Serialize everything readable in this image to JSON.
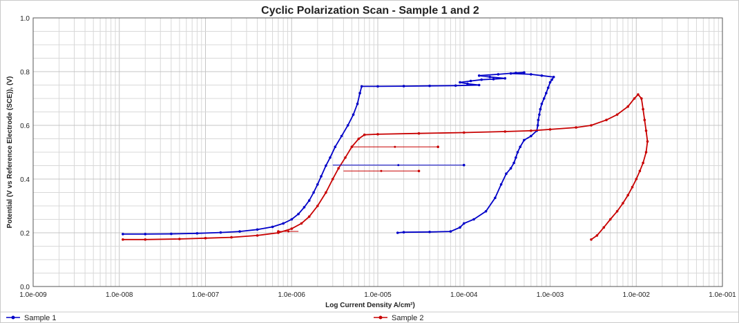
{
  "chart_data": {
    "type": "line",
    "title": "Cyclic Polarization Scan - Sample 1 and 2",
    "xlabel": "Log Current Density A/cm²)",
    "ylabel": "Potential (V vs Reference Electrode (SCE)), (V)",
    "x_scale": "log",
    "xlim": [
      1e-09,
      0.1
    ],
    "ylim": [
      0.0,
      1.0
    ],
    "x_tick_labels": [
      "1.0e-009",
      "1.0e-008",
      "1.0e-007",
      "1.0e-006",
      "1.0e-005",
      "1.0e-004",
      "1.0e-003",
      "1.0e-002",
      "1.0e-001"
    ],
    "y_tick_labels": [
      "0.0",
      "0.2",
      "0.4",
      "0.6",
      "0.8",
      "1.0"
    ],
    "grid": true,
    "legend_position": "bottom",
    "series": [
      {
        "name": "Sample 1",
        "color": "#0000c8",
        "points": [
          [
            1.1e-08,
            0.195
          ],
          [
            2e-08,
            0.195
          ],
          [
            4e-08,
            0.196
          ],
          [
            8e-08,
            0.198
          ],
          [
            1.5e-07,
            0.201
          ],
          [
            2.5e-07,
            0.205
          ],
          [
            4e-07,
            0.212
          ],
          [
            6e-07,
            0.222
          ],
          [
            8e-07,
            0.235
          ],
          [
            1e-06,
            0.25
          ],
          [
            1.2e-06,
            0.27
          ],
          [
            1.4e-06,
            0.295
          ],
          [
            1.6e-06,
            0.32
          ],
          [
            1.8e-06,
            0.35
          ],
          [
            2e-06,
            0.38
          ],
          [
            2.2e-06,
            0.41
          ],
          [
            2.5e-06,
            0.45
          ],
          [
            2.8e-06,
            0.48
          ],
          [
            3.2e-06,
            0.52
          ],
          [
            3.8e-06,
            0.56
          ],
          [
            4.5e-06,
            0.6
          ],
          [
            5.2e-06,
            0.64
          ],
          [
            5.8e-06,
            0.68
          ],
          [
            6.2e-06,
            0.72
          ],
          [
            6.5e-06,
            0.745
          ],
          [
            1e-05,
            0.745
          ],
          [
            2e-05,
            0.746
          ],
          [
            4e-05,
            0.747
          ],
          [
            8e-05,
            0.748
          ],
          [
            0.00015,
            0.75
          ],
          [
            0.00011,
            0.755
          ],
          [
            9e-05,
            0.76
          ],
          [
            0.00012,
            0.765
          ],
          [
            0.00016,
            0.77
          ],
          [
            0.00022,
            0.772
          ],
          [
            0.0003,
            0.775
          ],
          [
            0.0002,
            0.78
          ],
          [
            0.00015,
            0.785
          ],
          [
            0.00025,
            0.79
          ],
          [
            0.0004,
            0.795
          ],
          [
            0.0005,
            0.797
          ],
          [
            0.00035,
            0.793
          ],
          [
            0.0006,
            0.79
          ],
          [
            0.0008,
            0.785
          ],
          [
            0.0011,
            0.78
          ],
          [
            0.00105,
            0.77
          ],
          [
            0.001,
            0.76
          ],
          [
            0.00095,
            0.74
          ],
          [
            0.0009,
            0.72
          ],
          [
            0.00085,
            0.7
          ],
          [
            0.0008,
            0.68
          ],
          [
            0.00077,
            0.66
          ],
          [
            0.00075,
            0.64
          ],
          [
            0.00073,
            0.62
          ],
          [
            0.00072,
            0.6
          ],
          [
            0.0007,
            0.58
          ],
          [
            0.0006,
            0.56
          ],
          [
            0.0005,
            0.545
          ],
          [
            0.00045,
            0.52
          ],
          [
            0.00042,
            0.5
          ],
          [
            0.0004,
            0.48
          ],
          [
            0.00038,
            0.46
          ],
          [
            0.00035,
            0.44
          ],
          [
            0.00031,
            0.42
          ],
          [
            0.00027,
            0.38
          ],
          [
            0.00023,
            0.33
          ],
          [
            0.00018,
            0.28
          ],
          [
            0.00013,
            0.25
          ],
          [
            0.0001,
            0.235
          ],
          [
            9e-05,
            0.22
          ],
          [
            7e-05,
            0.205
          ],
          [
            4e-05,
            0.203
          ],
          [
            2e-05,
            0.202
          ],
          [
            1.7e-05,
            0.2
          ]
        ]
      },
      {
        "name": "Sample 2",
        "color": "#c80000",
        "points": [
          [
            1.1e-08,
            0.175
          ],
          [
            2e-08,
            0.175
          ],
          [
            5e-08,
            0.177
          ],
          [
            1e-07,
            0.18
          ],
          [
            2e-07,
            0.183
          ],
          [
            4e-07,
            0.19
          ],
          [
            7e-07,
            0.2
          ],
          [
            1e-06,
            0.215
          ],
          [
            1.3e-06,
            0.235
          ],
          [
            1.6e-06,
            0.26
          ],
          [
            2e-06,
            0.3
          ],
          [
            2.5e-06,
            0.35
          ],
          [
            3e-06,
            0.4
          ],
          [
            3.5e-06,
            0.44
          ],
          [
            4.2e-06,
            0.48
          ],
          [
            5e-06,
            0.52
          ],
          [
            6e-06,
            0.55
          ],
          [
            7e-06,
            0.565
          ],
          [
            1e-05,
            0.567
          ],
          [
            3e-05,
            0.57
          ],
          [
            0.0001,
            0.573
          ],
          [
            0.0003,
            0.577
          ],
          [
            0.0006,
            0.58
          ],
          [
            0.001,
            0.585
          ],
          [
            0.002,
            0.592
          ],
          [
            0.003,
            0.6
          ],
          [
            0.0045,
            0.62
          ],
          [
            0.006,
            0.64
          ],
          [
            0.008,
            0.67
          ],
          [
            0.0095,
            0.7
          ],
          [
            0.0105,
            0.715
          ],
          [
            0.0115,
            0.7
          ],
          [
            0.012,
            0.66
          ],
          [
            0.0125,
            0.62
          ],
          [
            0.013,
            0.58
          ],
          [
            0.0135,
            0.54
          ],
          [
            0.013,
            0.5
          ],
          [
            0.012,
            0.46
          ],
          [
            0.011,
            0.43
          ],
          [
            0.01,
            0.4
          ],
          [
            0.009,
            0.37
          ],
          [
            0.008,
            0.34
          ],
          [
            0.007,
            0.31
          ],
          [
            0.006,
            0.28
          ],
          [
            0.005,
            0.25
          ],
          [
            0.0042,
            0.22
          ],
          [
            0.0035,
            0.19
          ],
          [
            0.003,
            0.175
          ]
        ]
      }
    ],
    "side_traces": [
      {
        "series": "Sample 1",
        "y": 0.452,
        "x": [
          3e-06,
          0.0001
        ]
      },
      {
        "series": "Sample 2",
        "y": 0.52,
        "x": [
          5e-06,
          5e-05
        ]
      },
      {
        "series": "Sample 2",
        "y": 0.43,
        "x": [
          4e-06,
          3e-05
        ]
      },
      {
        "series": "Sample 2",
        "y": 0.205,
        "x": [
          1.2e-06,
          7e-07
        ]
      }
    ]
  }
}
